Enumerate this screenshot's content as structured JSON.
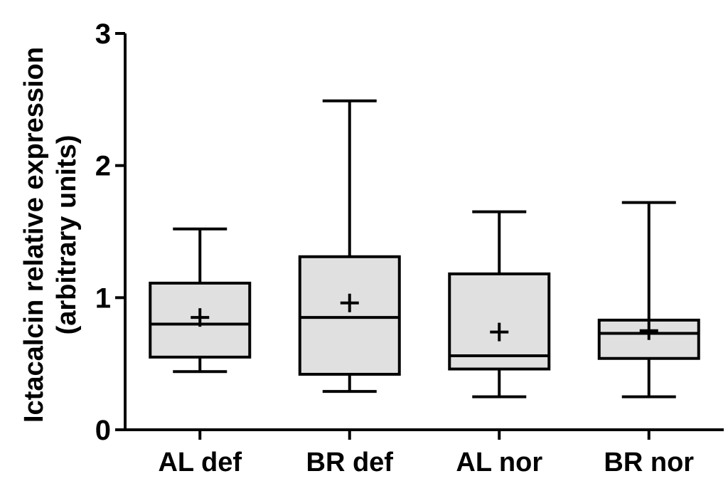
{
  "chart_data": {
    "type": "box",
    "title": "",
    "xlabel": "",
    "ylabel_line1": "Ictacalcin relative expression",
    "ylabel_line2": "(arbitrary units)",
    "ylim": [
      0,
      3
    ],
    "yticks": [
      0,
      1,
      2,
      3
    ],
    "ytick_labels": [
      "0",
      "1",
      "2",
      "3"
    ],
    "box_fill": "#e0e0e0",
    "line_color": "#000000",
    "grid": false,
    "categories": [
      "AL def",
      "BR def",
      "AL nor",
      "BR nor"
    ],
    "boxes": [
      {
        "label": "AL def",
        "min": 0.44,
        "q1": 0.55,
        "median": 0.8,
        "q3": 1.11,
        "max": 1.52,
        "mean": 0.85
      },
      {
        "label": "BR def",
        "min": 0.29,
        "q1": 0.42,
        "median": 0.85,
        "q3": 1.31,
        "max": 2.49,
        "mean": 0.96
      },
      {
        "label": "AL nor",
        "min": 0.25,
        "q1": 0.46,
        "median": 0.56,
        "q3": 1.18,
        "max": 1.65,
        "mean": 0.74
      },
      {
        "label": "BR nor",
        "min": 0.25,
        "q1": 0.54,
        "median": 0.73,
        "q3": 0.83,
        "max": 1.72,
        "mean": 0.75
      }
    ]
  }
}
